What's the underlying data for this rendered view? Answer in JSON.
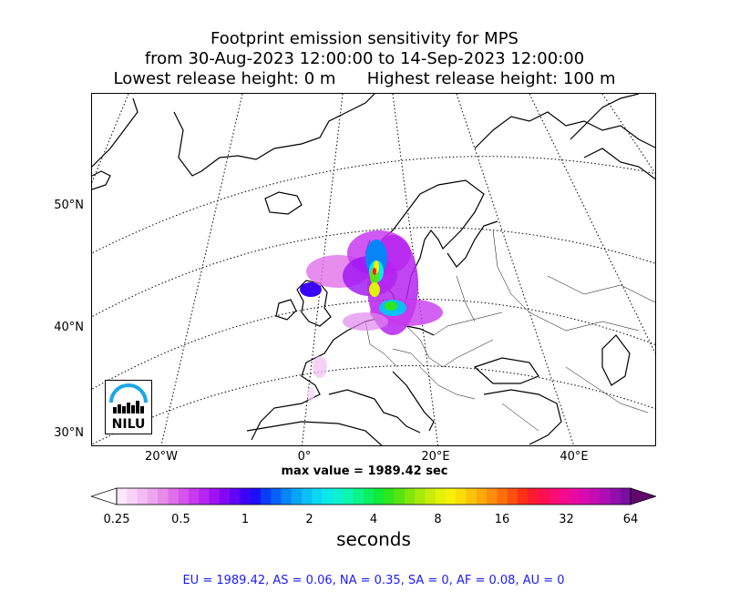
{
  "title": {
    "line1": "Footprint emission sensitivity for MPS",
    "line2": "from 30-Aug-2023 12:00:00 to 14-Sep-2023 12:00:00",
    "line3": "Lowest release height: 0 m      Highest release height: 100 m"
  },
  "map": {
    "lat_labels": [
      "50°N",
      "40°N",
      "30°N"
    ],
    "lon_labels": [
      "20°W",
      "0°",
      "20°E",
      "40°E"
    ],
    "logo_text": "NILU"
  },
  "max_value_text": "max value = 1989.42 sec",
  "colorbar": {
    "ticks": [
      "0.25",
      "0.5",
      "1",
      "2",
      "4",
      "8",
      "16",
      "32",
      "64"
    ],
    "unit": "seconds",
    "colors": [
      "#fde8fc",
      "#f9d2f8",
      "#f4bcf4",
      "#eea5f0",
      "#e88cec",
      "#e070ea",
      "#d654ec",
      "#c83aee",
      "#b624f0",
      "#9e12f2",
      "#8208f4",
      "#6204f6",
      "#3c02f8",
      "#1e0ef8",
      "#0a3cfa",
      "#0660fa",
      "#0684f8",
      "#08a4f6",
      "#0ac0f4",
      "#0cd8f2",
      "#0ce8e8",
      "#0cf2d0",
      "#0cf6b0",
      "#0af48a",
      "#0af062",
      "#10ea3a",
      "#30e61c",
      "#58e410",
      "#80e60c",
      "#a6ea0a",
      "#c6ee08",
      "#e2f206",
      "#f8f006",
      "#fadc06",
      "#fcc406",
      "#fcaa08",
      "#fc8e0a",
      "#fc700c",
      "#fc5010",
      "#fc3016",
      "#fc1a30",
      "#fc1050",
      "#fa0c70",
      "#f40a8c",
      "#e80aa0",
      "#d80aae",
      "#c40cb4",
      "#ac0eb2",
      "#920eac",
      "#7a0ea2"
    ]
  },
  "region_stats": "EU = 1989.42,  AS = 0.06,  NA = 0.35,  SA = 0,  AF = 0.08,  AU = 0"
}
